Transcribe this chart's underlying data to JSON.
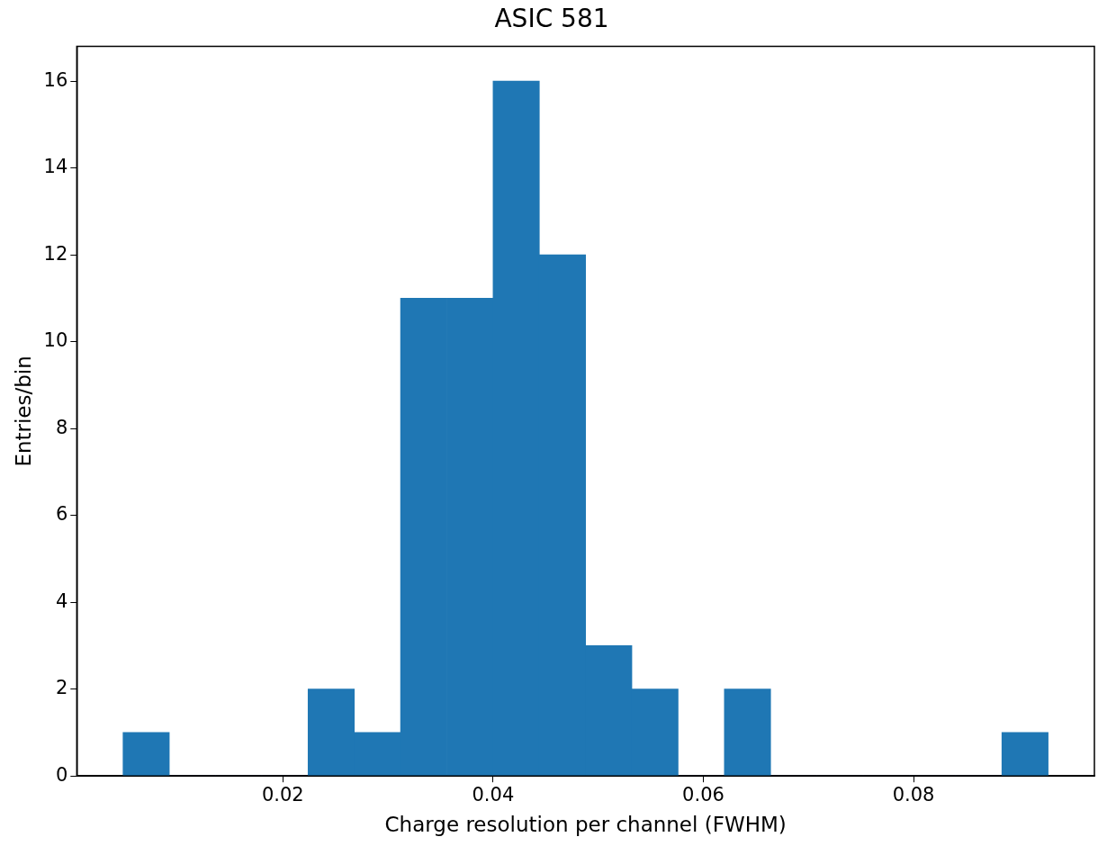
{
  "chart_data": {
    "type": "histogram",
    "title": "ASIC 581",
    "xlabel": "Charge resolution per channel (FWHM)",
    "ylabel": "Entries/bin",
    "bins": [
      0.0048,
      0.0092,
      0.0136,
      0.018,
      0.0224,
      0.0268,
      0.0312,
      0.0356,
      0.04,
      0.0444,
      0.0488,
      0.0532,
      0.0576,
      0.062,
      0.0664,
      0.0708,
      0.0752,
      0.0796,
      0.084,
      0.0884,
      0.0928
    ],
    "values": [
      1,
      0,
      0,
      0,
      2,
      1,
      11,
      11,
      16,
      12,
      3,
      2,
      0,
      2,
      0,
      0,
      0,
      0,
      0,
      1
    ],
    "color": "#1f77b4",
    "xlim": [
      0.0004,
      0.0972
    ],
    "xticks": [
      {
        "value": 0.02,
        "label": "0.02"
      },
      {
        "value": 0.04,
        "label": "0.04"
      },
      {
        "value": 0.06,
        "label": "0.06"
      },
      {
        "value": 0.08,
        "label": "0.08"
      }
    ],
    "ylim": [
      0,
      16.8
    ],
    "yticks": [
      0,
      2,
      4,
      6,
      8,
      10,
      12,
      14,
      16
    ],
    "grid": false,
    "legend": false
  }
}
